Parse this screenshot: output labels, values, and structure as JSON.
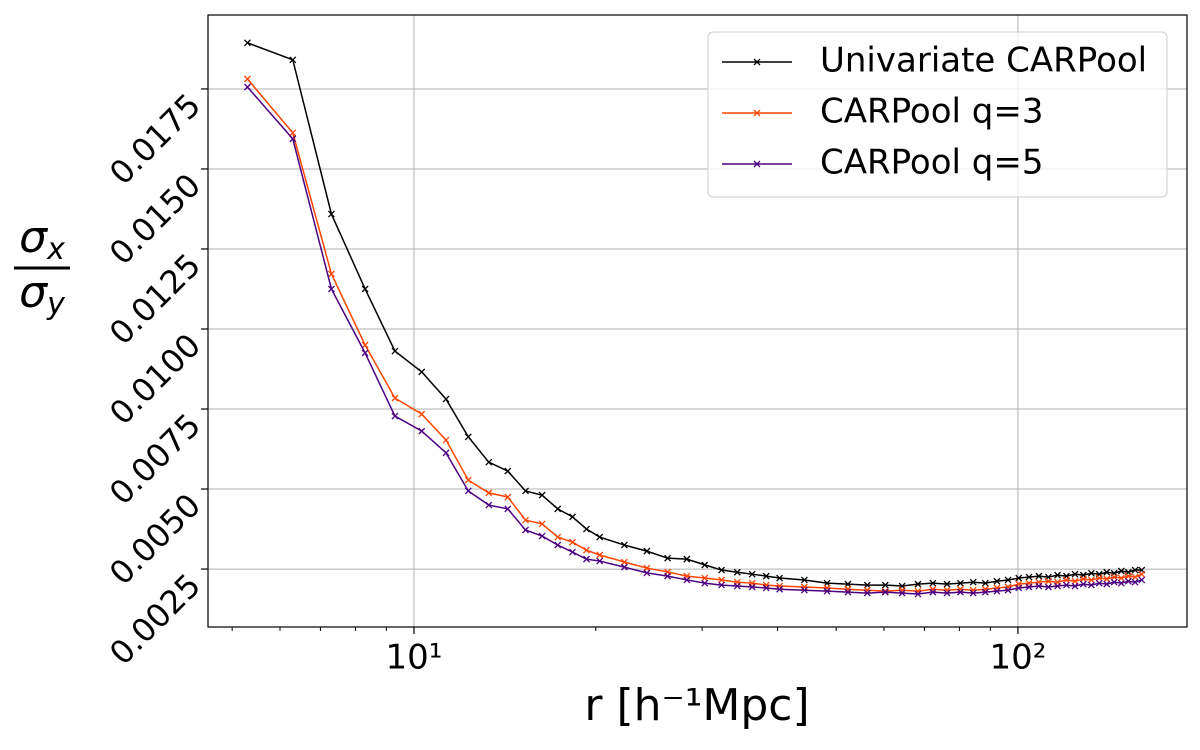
{
  "chart_data": {
    "type": "line",
    "xlabel": "r [h⁻¹Mpc]",
    "ylabel": {
      "numerator": [
        "σ",
        "x"
      ],
      "denominator": [
        "σ",
        "y"
      ]
    },
    "xscale": "log",
    "xlim": [
      4.56,
      190.5
    ],
    "ylim": [
      0.00069,
      0.01981
    ],
    "xticks": [
      {
        "value": 10,
        "label": "10¹"
      },
      {
        "value": 100,
        "label": "10²"
      }
    ],
    "xminorticks": [
      5,
      6,
      7,
      8,
      9,
      20,
      30,
      40,
      50,
      60,
      70,
      80,
      90
    ],
    "yticks": [
      0.0025,
      {
        "value": 0.005,
        "label": "0.0050"
      },
      0.0075,
      {
        "value": 0.01,
        "label": "0.0100"
      },
      0.0125,
      {
        "value": 0.015,
        "label": "0.0150"
      },
      0.0175
    ],
    "grid": true,
    "legend": "upper right",
    "x": [
      5.3,
      6.3,
      7.3,
      8.3,
      9.3,
      10.3,
      11.3,
      12.3,
      13.3,
      14.3,
      15.3,
      16.3,
      17.3,
      18.3,
      19.3,
      20.3,
      22.3,
      24.3,
      26.3,
      28.3,
      30.3,
      32.3,
      34.3,
      36.3,
      38.3,
      40.3,
      44.3,
      48.3,
      52.3,
      56.3,
      60.3,
      64.3,
      68.3,
      72.3,
      76.3,
      80.3,
      84.3,
      88.3,
      92.3,
      96.3,
      100.3,
      104.3,
      108.3,
      112.3,
      116.3,
      120.3,
      124.3,
      128.3,
      132.3,
      136.3,
      140.3,
      144.3,
      148.3,
      152.3,
      156.3,
      160.3
    ],
    "series": [
      {
        "name": "Univariate CARPool",
        "color": "#000000",
        "values": [
          0.01894,
          0.01841,
          0.01359,
          0.01125,
          0.00931,
          0.00866,
          0.00781,
          0.00663,
          0.00584,
          0.00556,
          0.00494,
          0.00481,
          0.00438,
          0.00413,
          0.00375,
          0.0035,
          0.00325,
          0.00306,
          0.00284,
          0.00281,
          0.00263,
          0.00247,
          0.0024,
          0.00234,
          0.00228,
          0.00222,
          0.00216,
          0.00206,
          0.00203,
          0.002,
          0.002,
          0.00197,
          0.00203,
          0.00206,
          0.00203,
          0.00206,
          0.00209,
          0.00206,
          0.00212,
          0.00216,
          0.00222,
          0.00225,
          0.00228,
          0.00225,
          0.00231,
          0.00228,
          0.00234,
          0.00231,
          0.00237,
          0.00234,
          0.0024,
          0.00237,
          0.00244,
          0.0024,
          0.00247,
          0.00247
        ]
      },
      {
        "name": "CARPool q=3",
        "color": "#ff4500",
        "values": [
          0.01781,
          0.01613,
          0.01172,
          0.0095,
          0.00784,
          0.00734,
          0.00653,
          0.00528,
          0.00488,
          0.00475,
          0.00403,
          0.00391,
          0.0035,
          0.00334,
          0.00309,
          0.00294,
          0.00272,
          0.00253,
          0.00241,
          0.00228,
          0.00222,
          0.00216,
          0.00209,
          0.00206,
          0.002,
          0.00197,
          0.00194,
          0.00191,
          0.00187,
          0.00184,
          0.00181,
          0.00184,
          0.00181,
          0.00187,
          0.00184,
          0.00187,
          0.00184,
          0.00187,
          0.00191,
          0.00194,
          0.00203,
          0.00206,
          0.00209,
          0.00212,
          0.00209,
          0.00216,
          0.00212,
          0.00219,
          0.00216,
          0.00222,
          0.00219,
          0.00225,
          0.00222,
          0.00228,
          0.00225,
          0.00234
        ]
      },
      {
        "name": "CARPool q=5",
        "color": "#4b0082",
        "values": [
          0.01756,
          0.01594,
          0.01125,
          0.00925,
          0.00728,
          0.00681,
          0.00613,
          0.00494,
          0.0045,
          0.00438,
          0.00372,
          0.00353,
          0.00325,
          0.00303,
          0.00281,
          0.00275,
          0.00256,
          0.00238,
          0.00228,
          0.00216,
          0.00206,
          0.002,
          0.00197,
          0.00194,
          0.00191,
          0.00187,
          0.00184,
          0.00181,
          0.00178,
          0.00175,
          0.00178,
          0.00175,
          0.00172,
          0.00178,
          0.00175,
          0.00178,
          0.00175,
          0.00178,
          0.00181,
          0.00184,
          0.00191,
          0.00194,
          0.00197,
          0.00194,
          0.00197,
          0.002,
          0.00197,
          0.00203,
          0.002,
          0.00206,
          0.00203,
          0.00209,
          0.00206,
          0.00212,
          0.00209,
          0.00216
        ]
      }
    ]
  }
}
